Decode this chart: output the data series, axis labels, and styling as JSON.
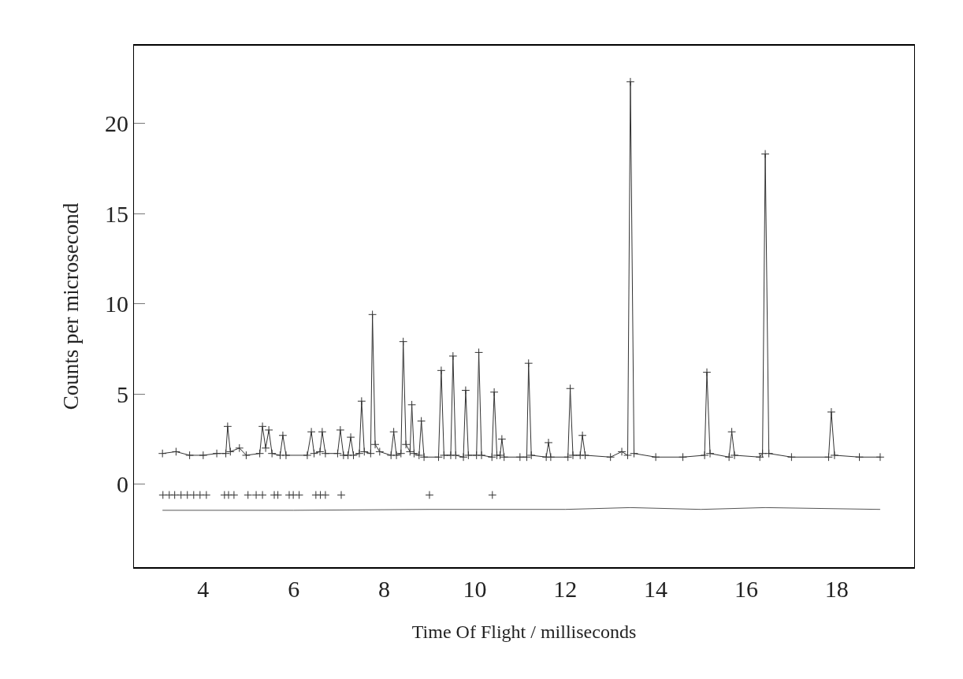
{
  "chart_data": {
    "type": "line",
    "xlabel": "Time Of Flight / milliseconds",
    "ylabel": "Counts per microsecond",
    "xlim": [
      2.47,
      19.71
    ],
    "xticks": [
      4,
      6,
      8,
      10,
      12,
      14,
      16,
      18
    ],
    "ylim": [
      -4.6,
      24.3
    ],
    "yticks": [
      0,
      5,
      10,
      15,
      20
    ],
    "series": [
      {
        "marker": "cross",
        "color": "#333333",
        "x": [
          3.1,
          3.4,
          3.7,
          4.0,
          4.3,
          4.5,
          4.54,
          4.6,
          4.8,
          4.95,
          5.25,
          5.31,
          5.38,
          5.45,
          5.52,
          5.7,
          5.76,
          5.83,
          6.3,
          6.39,
          6.45,
          6.58,
          6.63,
          6.7,
          6.97,
          7.03,
          7.1,
          7.2,
          7.26,
          7.32,
          7.45,
          7.5,
          7.56,
          7.7,
          7.74,
          7.8,
          7.9,
          8.15,
          8.21,
          8.27,
          8.37,
          8.42,
          8.48,
          8.57,
          8.61,
          8.66,
          8.77,
          8.82,
          8.88,
          9.2,
          9.26,
          9.32,
          9.47,
          9.52,
          9.58,
          9.75,
          9.8,
          9.86,
          10.04,
          10.09,
          10.15,
          10.38,
          10.43,
          10.49,
          10.56,
          10.6,
          10.65,
          11.0,
          11.15,
          11.19,
          11.25,
          11.58,
          11.63,
          11.68,
          12.06,
          12.11,
          12.17,
          12.33,
          12.38,
          12.44,
          13.0,
          13.25,
          13.38,
          13.44,
          13.52,
          14.0,
          14.6,
          15.08,
          15.13,
          15.2,
          15.62,
          15.68,
          15.74,
          16.3,
          16.36,
          16.42,
          16.5,
          17.0,
          17.82,
          17.88,
          17.95,
          18.5,
          18.96
        ],
        "values": [
          1.7,
          1.8,
          1.6,
          1.6,
          1.7,
          1.7,
          3.2,
          1.8,
          2.0,
          1.6,
          1.7,
          3.2,
          2.0,
          3.0,
          1.7,
          1.6,
          2.7,
          1.6,
          1.6,
          2.9,
          1.7,
          1.8,
          2.9,
          1.7,
          1.7,
          3.0,
          1.6,
          1.6,
          2.6,
          1.6,
          1.7,
          4.6,
          1.8,
          1.7,
          9.4,
          2.2,
          1.8,
          1.6,
          2.9,
          1.6,
          1.7,
          7.9,
          2.2,
          1.8,
          4.4,
          1.7,
          1.6,
          3.5,
          1.5,
          1.5,
          6.3,
          1.6,
          1.6,
          7.1,
          1.6,
          1.5,
          5.2,
          1.6,
          1.6,
          7.3,
          1.6,
          1.5,
          5.1,
          1.6,
          1.6,
          2.5,
          1.5,
          1.5,
          1.5,
          6.7,
          1.6,
          1.5,
          2.3,
          1.5,
          1.5,
          5.3,
          1.6,
          1.6,
          2.7,
          1.6,
          1.5,
          1.8,
          1.6,
          22.3,
          1.7,
          1.5,
          1.5,
          1.6,
          6.2,
          1.7,
          1.5,
          2.9,
          1.6,
          1.5,
          1.7,
          18.3,
          1.7,
          1.5,
          1.5,
          4.0,
          1.6,
          1.5,
          1.5
        ]
      },
      {
        "type": "scatter",
        "marker": "cross",
        "color": "#333333",
        "x": [
          3.11,
          3.25,
          3.37,
          3.51,
          3.65,
          3.79,
          3.93,
          4.07,
          4.47,
          4.56,
          4.68,
          4.99,
          5.17,
          5.31,
          5.57,
          5.65,
          5.9,
          5.99,
          6.12,
          6.49,
          6.59,
          6.7,
          7.05,
          9.0,
          10.39
        ],
        "values": [
          -0.6,
          -0.6,
          -0.6,
          -0.6,
          -0.6,
          -0.6,
          -0.6,
          -0.6,
          -0.6,
          -0.6,
          -0.6,
          -0.6,
          -0.6,
          -0.6,
          -0.6,
          -0.6,
          -0.6,
          -0.6,
          -0.6,
          -0.6,
          -0.6,
          -0.6,
          -0.6,
          -0.6,
          -0.6
        ]
      },
      {
        "marker": "none",
        "color": "#555555",
        "x": [
          3.1,
          6.0,
          9.0,
          12.0,
          13.44,
          15.0,
          16.42,
          18.96
        ],
        "values": [
          -1.45,
          -1.45,
          -1.4,
          -1.4,
          -1.3,
          -1.4,
          -1.3,
          -1.4
        ]
      }
    ]
  }
}
